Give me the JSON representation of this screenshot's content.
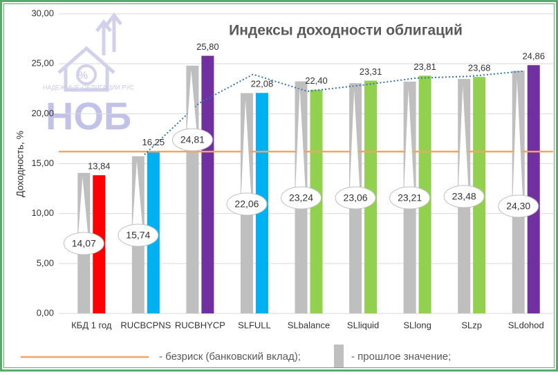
{
  "chart_data": {
    "type": "bar",
    "title": "Индексы доходности облигаций",
    "y_label": "Доходность, %",
    "watermark": {
      "site": "НАДЕЖНЫЕ-ОБЛИГАЦИИ.РУС",
      "logo": "НОБ"
    },
    "categories": [
      "КБД 1 год",
      "RUCBCPNS",
      "RUCBHYCP",
      "SLFULL",
      "SLbalance",
      "SLliquid",
      "SLlong",
      "SLzp",
      "SLdohod"
    ],
    "series": [
      {
        "name": "- прошлое значение;",
        "color": "#bfbfbf",
        "values": [
          14.07,
          15.74,
          24.81,
          22.06,
          23.24,
          23.06,
          23.21,
          23.48,
          24.3
        ],
        "value_labels": [
          "14,07",
          "15,74",
          "24,81",
          "22,06",
          "23,24",
          "23,06",
          "23,21",
          "23,48",
          "24,30"
        ]
      },
      {
        "colors": [
          "#ff0000",
          "#00b0f0",
          "#7030a0",
          "#00b0f0",
          "#92d050",
          "#92d050",
          "#92d050",
          "#92d050",
          "#7030a0"
        ],
        "values": [
          13.84,
          16.25,
          25.8,
          22.08,
          22.4,
          23.31,
          23.81,
          23.68,
          24.86
        ],
        "value_labels": [
          "13,84",
          "16,25",
          "25,80",
          "22,08",
          "22,40",
          "23,31",
          "23,81",
          "23,68",
          "24,86"
        ]
      }
    ],
    "trend": {
      "color": "#2e75b6",
      "values": [
        null,
        15.9,
        21.03,
        23.94,
        22.24,
        22.86,
        23.56,
        23.75,
        24.27
      ]
    },
    "reference_line": {
      "name": "- безриск (банковский вклад);",
      "value": 16.2,
      "color": "#f4a460"
    },
    "ylim": [
      0,
      30
    ],
    "yticks": [
      {
        "value": 0,
        "label": "0,00"
      },
      {
        "value": 5,
        "label": "5,00"
      },
      {
        "value": 10,
        "label": "10,00"
      },
      {
        "value": 15,
        "label": "15,00"
      },
      {
        "value": 20,
        "label": "20,00"
      },
      {
        "value": 25,
        "label": "25,00"
      },
      {
        "value": 30,
        "label": "30,00"
      }
    ],
    "grid": true
  }
}
